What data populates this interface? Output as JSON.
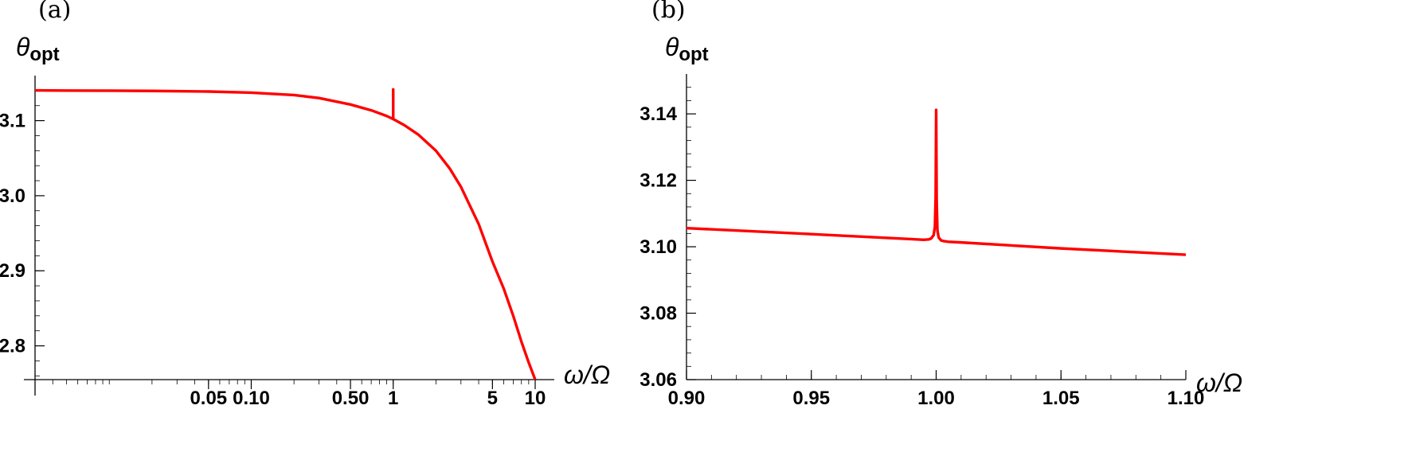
{
  "chart_data": [
    {
      "type": "line",
      "panel_label": "(a)",
      "ylabel": "θ",
      "ylabel_subscript": "opt",
      "xlabel": "ω/Ω",
      "x_scale": "log",
      "xlim": [
        0.003,
        10.0
      ],
      "ylim": [
        2.755,
        3.16
      ],
      "x_ticks": [
        {
          "value": 0.05,
          "label": "0.05"
        },
        {
          "value": 0.1,
          "label": "0.10"
        },
        {
          "value": 0.5,
          "label": "0.50"
        },
        {
          "value": 1,
          "label": "1"
        },
        {
          "value": 5,
          "label": "5"
        },
        {
          "value": 10,
          "label": "10"
        }
      ],
      "y_ticks": [
        {
          "value": 2.8,
          "label": "2.8"
        },
        {
          "value": 2.9,
          "label": "2.9"
        },
        {
          "value": 3.0,
          "label": "3.0"
        },
        {
          "value": 3.1,
          "label": "3.1"
        }
      ],
      "series": [
        {
          "color": "#ff0000",
          "x": [
            0.003,
            0.005,
            0.01,
            0.02,
            0.05,
            0.1,
            0.2,
            0.3,
            0.5,
            0.7,
            0.9,
            0.999,
            0.99999,
            1.0,
            1.00001,
            1.001,
            1.2,
            1.5,
            2,
            2.5,
            3,
            4,
            5,
            6,
            7,
            8,
            9,
            10
          ],
          "y": [
            3.1403,
            3.1401,
            3.1399,
            3.1396,
            3.1388,
            3.1373,
            3.1341,
            3.1301,
            3.1215,
            3.1138,
            3.1062,
            3.1021,
            3.1021,
            3.1416,
            3.1021,
            3.1021,
            3.0939,
            3.0815,
            3.0599,
            3.0363,
            3.0118,
            2.9622,
            2.9123,
            2.8764,
            2.8402,
            2.8056,
            2.7779,
            2.755
          ]
        }
      ]
    },
    {
      "type": "line",
      "panel_label": "(b)",
      "ylabel": "θ",
      "ylabel_subscript": "opt",
      "xlabel": "ω/Ω",
      "x_scale": "linear",
      "xlim": [
        0.9,
        1.1
      ],
      "ylim": [
        3.06,
        3.152
      ],
      "x_ticks": [
        {
          "value": 0.9,
          "label": "0.90"
        },
        {
          "value": 0.95,
          "label": "0.95"
        },
        {
          "value": 1.0,
          "label": "1.00"
        },
        {
          "value": 1.05,
          "label": "1.05"
        },
        {
          "value": 1.1,
          "label": "1.10"
        }
      ],
      "y_ticks": [
        {
          "value": 3.06,
          "label": "3.06"
        },
        {
          "value": 3.08,
          "label": "3.08"
        },
        {
          "value": 3.1,
          "label": "3.10"
        },
        {
          "value": 3.12,
          "label": "3.12"
        },
        {
          "value": 3.14,
          "label": "3.14"
        }
      ],
      "series": [
        {
          "color": "#ff0000",
          "x": [
            0.9,
            0.95,
            0.99,
            0.995,
            0.997,
            0.998,
            0.999,
            0.9995,
            0.9998,
            1.0,
            1.0002,
            1.0005,
            1.001,
            1.002,
            1.003,
            1.005,
            1.01,
            1.05,
            1.1
          ],
          "y": [
            3.1056,
            3.1038,
            3.1023,
            3.1021,
            3.1022,
            3.1025,
            3.1035,
            3.106,
            3.115,
            3.1412,
            3.114,
            3.105,
            3.1028,
            3.1019,
            3.1017,
            3.1015,
            3.1013,
            3.0995,
            3.0976
          ]
        }
      ]
    }
  ]
}
